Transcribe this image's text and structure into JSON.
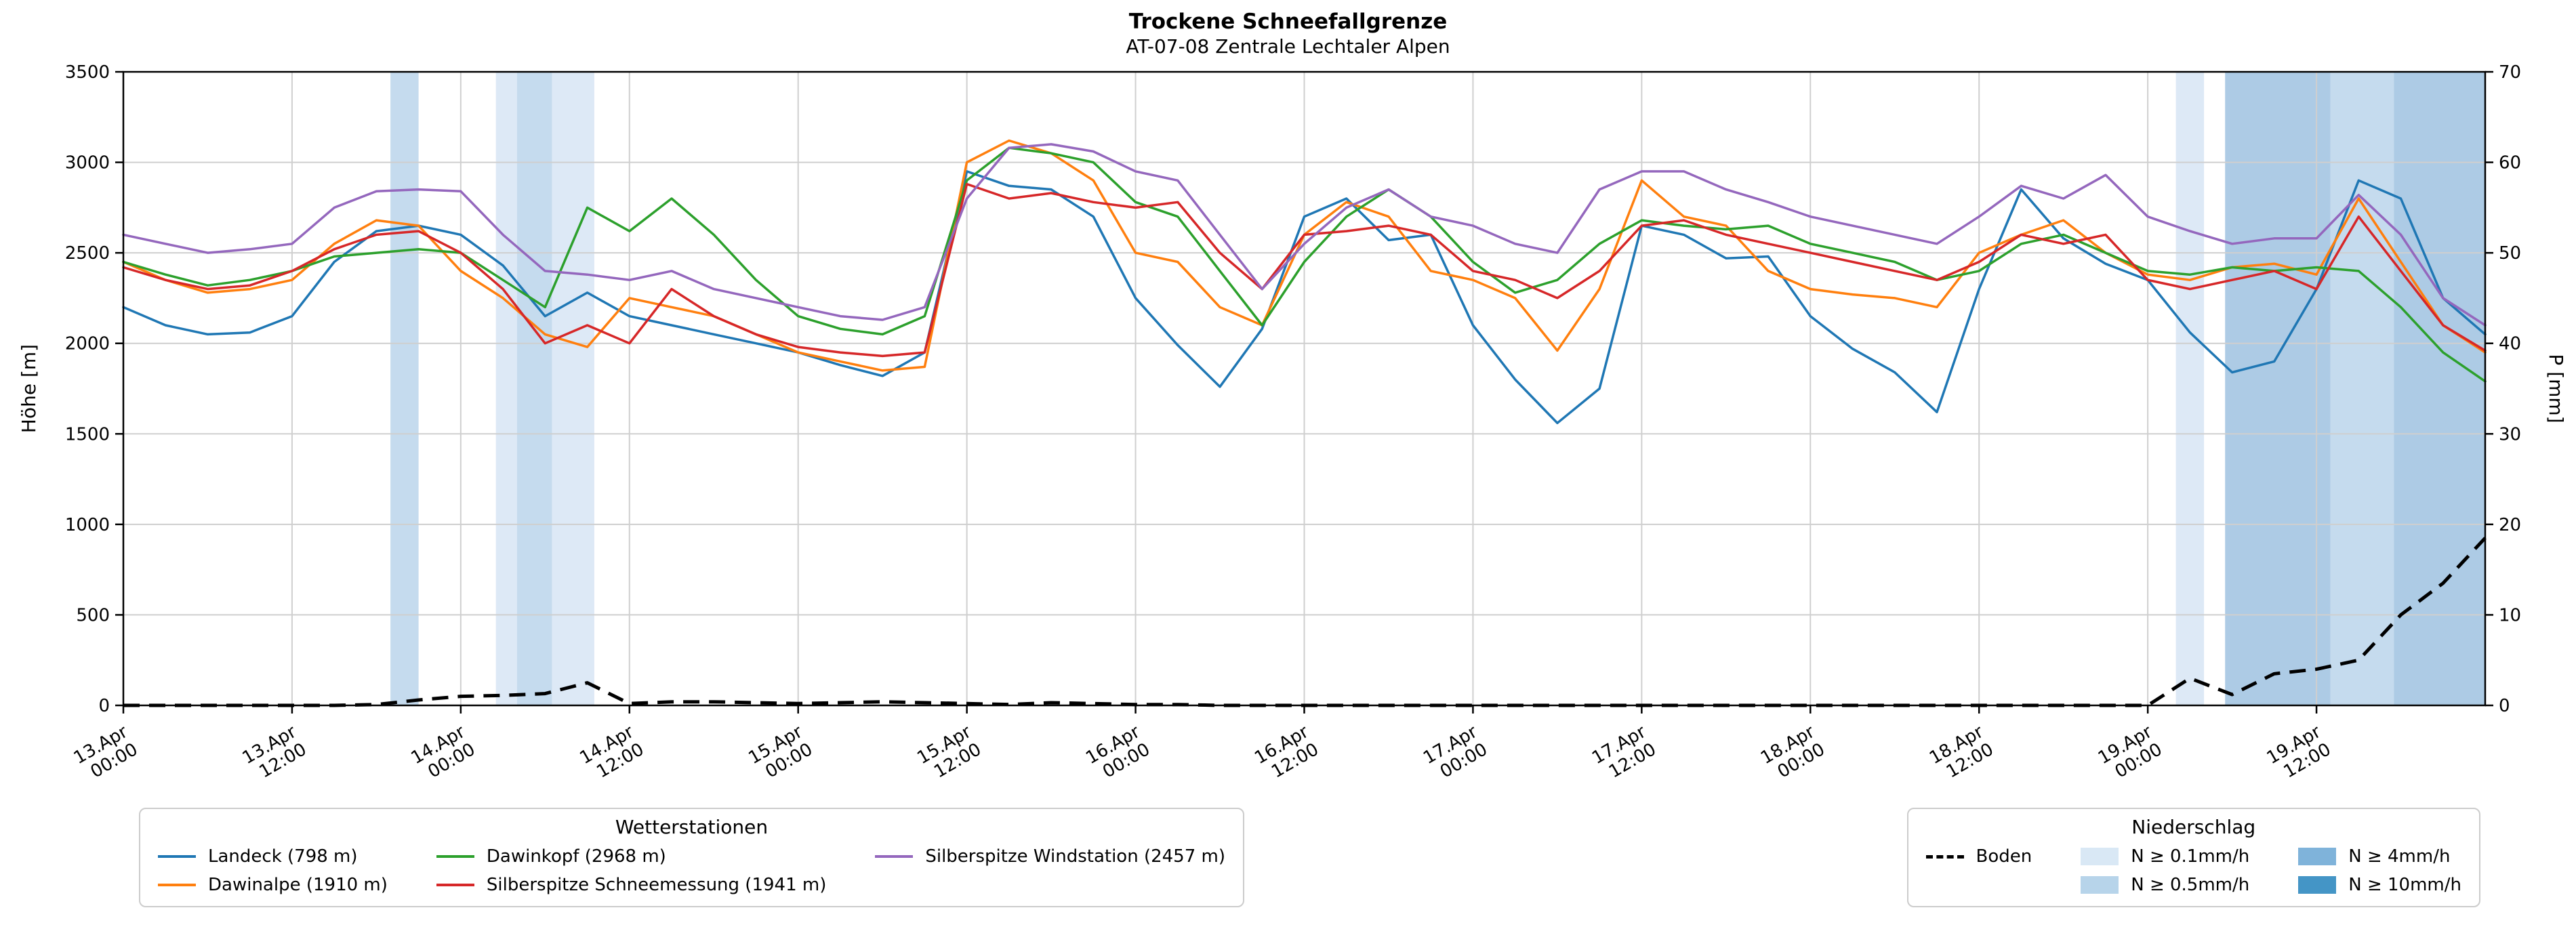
{
  "header": {
    "title": "Trockene Schneefallgrenze",
    "subtitle": "AT-07-08 Zentrale Lechtaler Alpen"
  },
  "legends": {
    "stations": {
      "title": "Wetterstationen",
      "items": [
        {
          "id": "landeck",
          "label": "Landeck (798 m)",
          "color": "#1f77b4"
        },
        {
          "id": "dawinalpe",
          "label": "Dawinalpe (1910 m)",
          "color": "#ff7f0e"
        },
        {
          "id": "dawinkopf",
          "label": "Dawinkopf (2968 m)",
          "color": "#2ca02c"
        },
        {
          "id": "silberspitze-schneemessung",
          "label": "Silberspitze Schneemessung (1941 m)",
          "color": "#d62728"
        },
        {
          "id": "silberspitze-windstation",
          "label": "Silberspitze Windstation (2457 m)",
          "color": "#9467bd"
        }
      ]
    },
    "precip": {
      "title": "Niederschlag",
      "boden_label": "Boden",
      "levels": [
        {
          "label": "N ≥ 0.1mm/h",
          "color": "#d9e8f5"
        },
        {
          "label": "N ≥ 0.5mm/h",
          "color": "#b7d4ea"
        },
        {
          "label": "N ≥ 4mm/h",
          "color": "#7fb3da"
        },
        {
          "label": "N ≥ 10mm/h",
          "color": "#4495c6"
        }
      ]
    }
  },
  "chart_data": {
    "type": "line",
    "title": "Trockene Schneefallgrenze",
    "subtitle": "AT-07-08 Zentrale Lechtaler Alpen",
    "grid": true,
    "x_axis": {
      "unit": "hours since 13.Apr 00:00",
      "range": [
        0,
        168
      ],
      "ticks": [
        {
          "hour": 0,
          "line1": "13.Apr",
          "line2": "00:00"
        },
        {
          "hour": 12,
          "line1": "13.Apr",
          "line2": "12:00"
        },
        {
          "hour": 24,
          "line1": "14.Apr",
          "line2": "00:00"
        },
        {
          "hour": 36,
          "line1": "14.Apr",
          "line2": "12:00"
        },
        {
          "hour": 48,
          "line1": "15.Apr",
          "line2": "00:00"
        },
        {
          "hour": 60,
          "line1": "15.Apr",
          "line2": "12:00"
        },
        {
          "hour": 72,
          "line1": "16.Apr",
          "line2": "00:00"
        },
        {
          "hour": 84,
          "line1": "16.Apr",
          "line2": "12:00"
        },
        {
          "hour": 96,
          "line1": "17.Apr",
          "line2": "00:00"
        },
        {
          "hour": 108,
          "line1": "17.Apr",
          "line2": "12:00"
        },
        {
          "hour": 120,
          "line1": "18.Apr",
          "line2": "00:00"
        },
        {
          "hour": 132,
          "line1": "18.Apr",
          "line2": "12:00"
        },
        {
          "hour": 144,
          "line1": "19.Apr",
          "line2": "00:00"
        },
        {
          "hour": 156,
          "line1": "19.Apr",
          "line2": "12:00"
        }
      ]
    },
    "y_left": {
      "label": "Höhe [m]",
      "range": [
        0,
        3500
      ],
      "tick_step": 500
    },
    "y_right": {
      "label": "P [mm]",
      "range": [
        0,
        70
      ],
      "tick_step": 10
    },
    "sample_step_hours": 3,
    "series": [
      {
        "id": "landeck",
        "name": "Landeck (798 m)",
        "color": "#1f77b4",
        "values": [
          2200,
          2100,
          2050,
          2060,
          2150,
          2450,
          2620,
          2650,
          2600,
          2430,
          2150,
          2280,
          2150,
          2100,
          2050,
          2000,
          1950,
          1880,
          1820,
          1950,
          2950,
          2870,
          2850,
          2700,
          2250,
          1990,
          1760,
          2080,
          2700,
          2800,
          2570,
          2600,
          2100,
          1800,
          1560,
          1750,
          2650,
          2600,
          2470,
          2480,
          2150,
          1970,
          1840,
          1620,
          2300,
          2850,
          2580,
          2440,
          2350,
          2060,
          1840,
          1900,
          2300,
          2900,
          2800,
          2250,
          2050
        ]
      },
      {
        "id": "dawinalpe",
        "name": "Dawinalpe (1910 m)",
        "color": "#ff7f0e",
        "values": [
          2450,
          2350,
          2280,
          2300,
          2350,
          2550,
          2680,
          2650,
          2400,
          2250,
          2050,
          1980,
          2250,
          2200,
          2150,
          2050,
          1950,
          1900,
          1850,
          1870,
          3000,
          3120,
          3050,
          2900,
          2500,
          2450,
          2200,
          2100,
          2600,
          2780,
          2700,
          2400,
          2350,
          2250,
          1960,
          2300,
          2900,
          2700,
          2650,
          2400,
          2300,
          2270,
          2250,
          2200,
          2500,
          2600,
          2680,
          2500,
          2380,
          2350,
          2420,
          2440,
          2380,
          2800,
          2450,
          2100,
          1950
        ]
      },
      {
        "id": "dawinkopf",
        "name": "Dawinkopf (2968 m)",
        "color": "#2ca02c",
        "values": [
          2450,
          2380,
          2320,
          2350,
          2400,
          2480,
          2500,
          2520,
          2500,
          2350,
          2200,
          2750,
          2620,
          2800,
          2600,
          2350,
          2150,
          2080,
          2050,
          2150,
          2900,
          3080,
          3050,
          3000,
          2780,
          2700,
          2400,
          2100,
          2450,
          2700,
          2850,
          2700,
          2450,
          2280,
          2350,
          2550,
          2680,
          2650,
          2630,
          2650,
          2550,
          2500,
          2450,
          2350,
          2400,
          2550,
          2600,
          2500,
          2400,
          2380,
          2420,
          2400,
          2420,
          2400,
          2200,
          1950,
          1790
        ]
      },
      {
        "id": "silberspitze-schneemessung",
        "name": "Silberspitze Schneemessung (1941 m)",
        "color": "#d62728",
        "values": [
          2420,
          2350,
          2300,
          2320,
          2400,
          2520,
          2600,
          2620,
          2500,
          2300,
          2000,
          2100,
          2000,
          2300,
          2150,
          2050,
          1980,
          1950,
          1930,
          1950,
          2880,
          2800,
          2830,
          2780,
          2750,
          2780,
          2500,
          2300,
          2600,
          2620,
          2650,
          2600,
          2400,
          2350,
          2250,
          2400,
          2650,
          2680,
          2600,
          2550,
          2500,
          2450,
          2400,
          2350,
          2450,
          2600,
          2550,
          2600,
          2350,
          2300,
          2350,
          2400,
          2300,
          2700,
          2400,
          2100,
          1960
        ]
      },
      {
        "id": "silberspitze-windstation",
        "name": "Silberspitze Windstation (2457 m)",
        "color": "#9467bd",
        "values": [
          2600,
          2550,
          2500,
          2520,
          2550,
          2750,
          2840,
          2850,
          2840,
          2600,
          2400,
          2380,
          2350,
          2400,
          2300,
          2250,
          2200,
          2150,
          2130,
          2200,
          2800,
          3080,
          3100,
          3060,
          2950,
          2900,
          2600,
          2300,
          2550,
          2750,
          2850,
          2700,
          2650,
          2550,
          2500,
          2850,
          2950,
          2950,
          2850,
          2780,
          2700,
          2650,
          2600,
          2550,
          2700,
          2870,
          2800,
          2930,
          2700,
          2620,
          2550,
          2580,
          2580,
          2820,
          2600,
          2250,
          2100
        ]
      }
    ],
    "boden": {
      "name": "Boden",
      "color": "#000000",
      "style": "dashed",
      "axis": "right",
      "values": [
        0,
        0,
        0,
        0,
        0,
        0,
        0.1,
        0.6,
        1.0,
        1.1,
        1.3,
        2.5,
        0.2,
        0.4,
        0.4,
        0.3,
        0.2,
        0.3,
        0.4,
        0.3,
        0.2,
        0.1,
        0.3,
        0.2,
        0.1,
        0.1,
        0,
        0,
        0,
        0,
        0,
        0,
        0,
        0,
        0,
        0,
        0,
        0,
        0,
        0,
        0,
        0,
        0,
        0,
        0,
        0,
        0,
        0,
        0,
        3.0,
        1.2,
        3.5,
        4.0,
        5.0,
        10.0,
        13.5,
        18.5
      ]
    },
    "precip_bands": [
      {
        "start_hour": 19,
        "end_hour": 21,
        "level": "0.5"
      },
      {
        "start_hour": 26.5,
        "end_hour": 28,
        "level": "0.1"
      },
      {
        "start_hour": 28,
        "end_hour": 30.5,
        "level": "0.5"
      },
      {
        "start_hour": 30.5,
        "end_hour": 33.5,
        "level": "0.1"
      },
      {
        "start_hour": 146,
        "end_hour": 148,
        "level": "0.1"
      },
      {
        "start_hour": 149.5,
        "end_hour": 157,
        "level": "4"
      },
      {
        "start_hour": 157,
        "end_hour": 161.5,
        "level": "0.5"
      },
      {
        "start_hour": 161.5,
        "end_hour": 168,
        "level": "4"
      }
    ],
    "band_fill_colors": {
      "0.1": "#dde9f6",
      "0.5": "#c5dbee",
      "4": "#adcbe5",
      "10": "#86b6dc"
    }
  }
}
